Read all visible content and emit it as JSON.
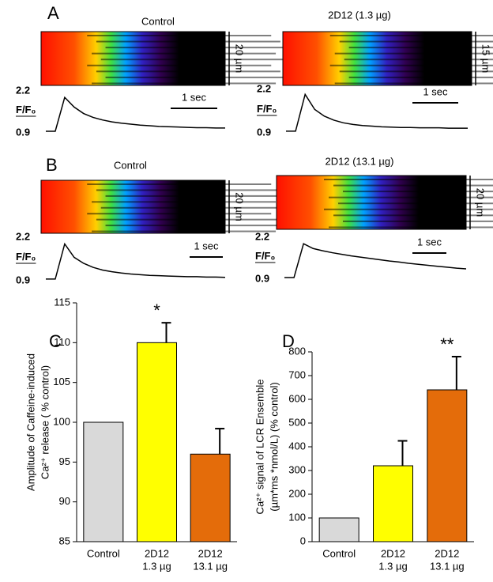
{
  "panels": [
    {
      "label": "A",
      "title": "Control",
      "scale_label": "20 µm",
      "y_label": "F/F₀",
      "ylim": [
        0.9,
        2.2
      ],
      "yticks": [
        2.2,
        0.9
      ],
      "time_scale": "1 sec",
      "trace": [
        0.95,
        0.95,
        2.0,
        1.7,
        1.5,
        1.38,
        1.3,
        1.24,
        1.2,
        1.17,
        1.14,
        1.12,
        1.1,
        1.09,
        1.08,
        1.07,
        1.06,
        1.06,
        1.05,
        1.05
      ]
    },
    {
      "title": "2D12 (1.3 µg)",
      "scale_label": "15 µm",
      "y_label": "F/F₀",
      "ylim": [
        0.9,
        2.2
      ],
      "yticks": [
        2.2,
        0.9
      ],
      "time_scale": "1 sec",
      "trace": [
        0.95,
        0.95,
        2.05,
        1.6,
        1.4,
        1.28,
        1.2,
        1.15,
        1.12,
        1.1,
        1.08,
        1.07,
        1.06,
        1.06,
        1.05,
        1.05,
        1.05,
        1.04,
        1.04,
        1.04
      ]
    },
    {
      "label": "B",
      "title": "Control",
      "scale_label": "20 µm",
      "y_label": "F/F₀",
      "ylim": [
        0.9,
        2.2
      ],
      "yticks": [
        2.2,
        0.9
      ],
      "time_scale": "1 sec",
      "trace": [
        0.95,
        0.95,
        2.0,
        1.6,
        1.42,
        1.3,
        1.22,
        1.17,
        1.13,
        1.1,
        1.08,
        1.06,
        1.05,
        1.04,
        1.03,
        1.02,
        1.02,
        1.01,
        1.01,
        1.0
      ]
    },
    {
      "title": "2D12 (13.1 µg)",
      "scale_label": "20 µm",
      "y_label": "F/F₀",
      "ylim": [
        0.9,
        2.2
      ],
      "yticks": [
        2.2,
        0.9
      ],
      "time_scale": "1 sec",
      "trace": [
        0.95,
        0.95,
        2.0,
        1.85,
        1.78,
        1.72,
        1.67,
        1.62,
        1.58,
        1.54,
        1.5,
        1.46,
        1.43,
        1.39,
        1.36,
        1.33,
        1.3,
        1.27,
        1.24,
        1.22
      ]
    }
  ],
  "chart_data": [
    {
      "type": "bar",
      "label": "C",
      "y_label": [
        "Amplitude of Caffeine-induced",
        "Ca²⁺ release ( % control)"
      ],
      "categories": [
        [
          "Control"
        ],
        [
          "2D12",
          "1.3 µg"
        ],
        [
          "2D12",
          "13.1 µg"
        ]
      ],
      "values": [
        100,
        110,
        96
      ],
      "errors": [
        null,
        2.5,
        3.2
      ],
      "colors": [
        "#d9d9d9",
        "#ffff00",
        "#e46c0a"
      ],
      "value_annotations": [
        null,
        "*",
        null
      ],
      "ylim": [
        85,
        115
      ],
      "yticks": [
        85,
        90,
        95,
        100,
        105,
        110,
        115
      ]
    },
    {
      "type": "bar",
      "label": "D",
      "y_label": [
        "Ca²⁺ signal of LCR Ensemble",
        "(µm*ms *nmol/L) (% control)"
      ],
      "categories": [
        [
          "Control"
        ],
        [
          "2D12",
          "1.3 µg"
        ],
        [
          "2D12",
          "13.1 µg"
        ]
      ],
      "values": [
        100,
        320,
        640
      ],
      "errors": [
        null,
        105,
        140
      ],
      "colors": [
        "#d9d9d9",
        "#ffff00",
        "#e46c0a"
      ],
      "value_annotations": [
        null,
        null,
        "**"
      ],
      "ylim": [
        0,
        800
      ],
      "yticks": [
        0,
        100,
        200,
        300,
        400,
        500,
        600,
        700,
        800
      ]
    }
  ]
}
